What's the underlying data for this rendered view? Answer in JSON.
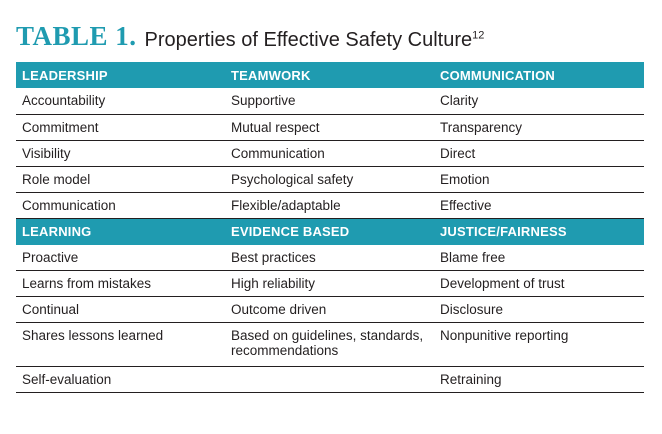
{
  "title": {
    "label": "TABLE 1.",
    "text": "Properties of Effective Safety Culture",
    "ref": "12"
  },
  "sections": [
    {
      "headers": [
        "LEADERSHIP",
        "TEAMWORK",
        "COMMUNICATION"
      ],
      "rows": [
        [
          "Accountability",
          "Supportive",
          "Clarity"
        ],
        [
          "Commitment",
          "Mutual respect",
          "Transparency"
        ],
        [
          "Visibility",
          "Communication",
          "Direct"
        ],
        [
          "Role model",
          "Psychological safety",
          "Emotion"
        ],
        [
          "Communication",
          "Flexible/adaptable",
          "Effective"
        ]
      ]
    },
    {
      "headers": [
        "LEARNING",
        "EVIDENCE BASED",
        "JUSTICE/FAIRNESS"
      ],
      "rows": [
        [
          "Proactive",
          "Best practices",
          "Blame free"
        ],
        [
          "Learns from mistakes",
          "High reliability",
          "Development of trust"
        ],
        [
          "Continual",
          "Outcome driven",
          "Disclosure"
        ],
        [
          "Shares lessons learned",
          "Based on guidelines, standards, recommendations",
          "Nonpunitive reporting"
        ],
        [
          "Self-evaluation",
          "",
          "Retraining"
        ]
      ]
    }
  ]
}
